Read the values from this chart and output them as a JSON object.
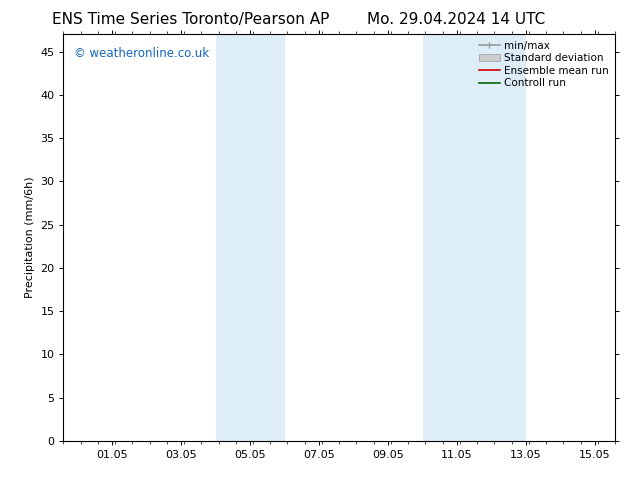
{
  "title_left": "ENS Time Series Toronto/Pearson AP",
  "title_right": "Mo. 29.04.2024 14 UTC",
  "ylabel": "Precipitation (mm/6h)",
  "ylim": [
    0,
    47
  ],
  "yticks": [
    0,
    5,
    10,
    15,
    20,
    25,
    30,
    35,
    40,
    45
  ],
  "xtick_labels": [
    "01.05",
    "03.05",
    "05.05",
    "07.05",
    "09.05",
    "11.05",
    "13.05",
    "15.05"
  ],
  "xtick_positions": [
    1.4167,
    3.4167,
    5.4167,
    7.4167,
    9.4167,
    11.4167,
    13.4167,
    15.4167
  ],
  "total_days": 16.0,
  "shaded_bands": [
    {
      "xstart": 4.4167,
      "xend": 6.4167
    },
    {
      "xstart": 10.4167,
      "xend": 13.4167
    }
  ],
  "shade_color": "#ddeef8",
  "bg_color": "#ffffff",
  "watermark_text": "© weatheronline.co.uk",
  "watermark_color": "#1565c0",
  "legend_labels": [
    "min/max",
    "Standard deviation",
    "Ensemble mean run",
    "Controll run"
  ],
  "legend_colors": [
    "#aaaaaa",
    "#cccccc",
    "#cc0000",
    "#006600"
  ],
  "title_fontsize": 11,
  "tick_fontsize": 8,
  "ylabel_fontsize": 8,
  "legend_fontsize": 7.5
}
